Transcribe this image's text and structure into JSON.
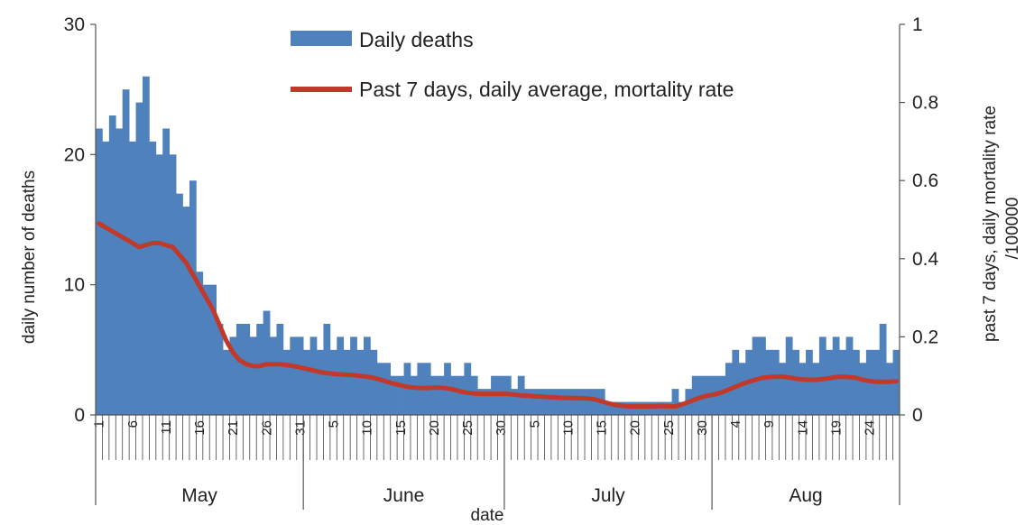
{
  "chart_data": {
    "type": "bar",
    "xlabel": "date",
    "ylabel": "daily number of deaths",
    "y2label_line1": "past 7 days, daily mortality rate",
    "y2label_line2": "/100000",
    "ylim": [
      0,
      30
    ],
    "y2lim": [
      0,
      1
    ],
    "yticks": [
      "0",
      "10",
      "20",
      "30"
    ],
    "y2ticks": [
      "0",
      "0.2",
      "0.4",
      "0.6",
      "0.8",
      "1"
    ],
    "months": [
      {
        "label": "May",
        "start": 0,
        "end": 31
      },
      {
        "label": "June",
        "start": 31,
        "end": 61
      },
      {
        "label": "July",
        "start": 61,
        "end": 92
      },
      {
        "label": "Aug",
        "start": 92,
        "end": 120
      }
    ],
    "day_labels": [
      {
        "index": 0,
        "label": "1"
      },
      {
        "index": 5,
        "label": "6"
      },
      {
        "index": 10,
        "label": "11"
      },
      {
        "index": 15,
        "label": "16"
      },
      {
        "index": 20,
        "label": "21"
      },
      {
        "index": 25,
        "label": "26"
      },
      {
        "index": 30,
        "label": "31"
      },
      {
        "index": 35,
        "label": "5"
      },
      {
        "index": 40,
        "label": "10"
      },
      {
        "index": 45,
        "label": "15"
      },
      {
        "index": 50,
        "label": "20"
      },
      {
        "index": 55,
        "label": "25"
      },
      {
        "index": 60,
        "label": "30"
      },
      {
        "index": 65,
        "label": "5"
      },
      {
        "index": 70,
        "label": "10"
      },
      {
        "index": 75,
        "label": "15"
      },
      {
        "index": 80,
        "label": "20"
      },
      {
        "index": 85,
        "label": "25"
      },
      {
        "index": 90,
        "label": "30"
      },
      {
        "index": 95,
        "label": "4"
      },
      {
        "index": 100,
        "label": "9"
      },
      {
        "index": 105,
        "label": "14"
      },
      {
        "index": 110,
        "label": "19"
      },
      {
        "index": 115,
        "label": "24"
      }
    ],
    "series": [
      {
        "name": "Daily deaths",
        "type": "bar",
        "color": "#4f81bd",
        "values": [
          22,
          21,
          23,
          22,
          25,
          21,
          24,
          26,
          21,
          20,
          22,
          20,
          17,
          16,
          18,
          11,
          10,
          10,
          7,
          5,
          6,
          7,
          7,
          6,
          7,
          8,
          6,
          7,
          5,
          6,
          6,
          5,
          6,
          5,
          7,
          5,
          6,
          5,
          6,
          5,
          6,
          5,
          4,
          4,
          3,
          3,
          4,
          3,
          4,
          4,
          3,
          3,
          4,
          3,
          3,
          4,
          3,
          2,
          2,
          3,
          3,
          3,
          2,
          3,
          2,
          2,
          2,
          2,
          2,
          2,
          2,
          2,
          2,
          2,
          2,
          2,
          1,
          1,
          1,
          1,
          1,
          1,
          1,
          1,
          1,
          1,
          2,
          1,
          2,
          3,
          3,
          3,
          3,
          3,
          4,
          5,
          4,
          5,
          6,
          6,
          5,
          5,
          4,
          6,
          5,
          4,
          5,
          4,
          6,
          5,
          6,
          5,
          6,
          5,
          4,
          5,
          5,
          7,
          4,
          5
        ]
      },
      {
        "name": "Past 7 days, daily average, mortality rate",
        "type": "line",
        "axis": "right",
        "color": "#c0392b",
        "values": [
          0.49,
          0.48,
          0.47,
          0.46,
          0.45,
          0.44,
          0.43,
          0.435,
          0.44,
          0.44,
          0.435,
          0.43,
          0.41,
          0.39,
          0.36,
          0.33,
          0.3,
          0.27,
          0.23,
          0.19,
          0.16,
          0.14,
          0.13,
          0.125,
          0.125,
          0.13,
          0.13,
          0.13,
          0.128,
          0.125,
          0.122,
          0.118,
          0.114,
          0.11,
          0.107,
          0.105,
          0.104,
          0.103,
          0.102,
          0.1,
          0.098,
          0.095,
          0.09,
          0.085,
          0.08,
          0.076,
          0.072,
          0.07,
          0.069,
          0.069,
          0.07,
          0.07,
          0.068,
          0.065,
          0.06,
          0.057,
          0.055,
          0.054,
          0.054,
          0.054,
          0.054,
          0.054,
          0.052,
          0.05,
          0.049,
          0.048,
          0.047,
          0.046,
          0.045,
          0.044,
          0.044,
          0.043,
          0.043,
          0.042,
          0.04,
          0.035,
          0.03,
          0.026,
          0.024,
          0.022,
          0.022,
          0.022,
          0.022,
          0.022,
          0.023,
          0.022,
          0.022,
          0.027,
          0.033,
          0.04,
          0.046,
          0.05,
          0.053,
          0.058,
          0.065,
          0.072,
          0.079,
          0.085,
          0.09,
          0.095,
          0.097,
          0.098,
          0.098,
          0.096,
          0.093,
          0.091,
          0.09,
          0.09,
          0.092,
          0.094,
          0.097,
          0.098,
          0.097,
          0.095,
          0.09,
          0.087,
          0.085,
          0.085,
          0.085,
          0.086
        ]
      }
    ],
    "legend": [
      "Daily deaths",
      "Past 7 days, daily average, mortality rate"
    ],
    "legend_position": "top-center",
    "grid": false
  }
}
